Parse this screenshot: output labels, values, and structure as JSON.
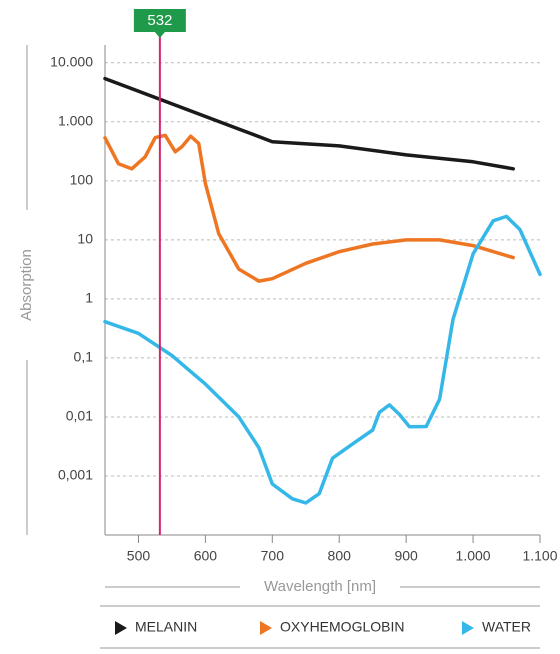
{
  "chart_data": {
    "type": "line",
    "y_label": "Absorption",
    "x_label": "Wavelength [nm]",
    "log_y": true,
    "grid": true,
    "xlim": [
      450,
      1100
    ],
    "xticks": [
      500,
      600,
      700,
      800,
      900,
      {
        "value": 1000,
        "label": "1.000"
      },
      {
        "value": 1100,
        "label": "1.100"
      }
    ],
    "ylim": [
      0.0001,
      20000
    ],
    "yticks": [
      {
        "value": 10000,
        "label": "10.000"
      },
      {
        "value": 1000,
        "label": "1.000"
      },
      100,
      10,
      1,
      {
        "value": 0.1,
        "label": "0,1"
      },
      {
        "value": 0.01,
        "label": "0,01"
      },
      {
        "value": 0.001,
        "label": "0,001"
      }
    ],
    "marker": {
      "value": 532,
      "color": "#d6246e",
      "label_color": "#1f9a4a"
    },
    "series": [
      {
        "name": "MELANIN",
        "color": "#1a1a1a",
        "x": [
          450,
          700,
          800,
          900,
          1000,
          1060
        ],
        "values": [
          5400,
          460,
          390,
          275,
          210,
          160
        ]
      },
      {
        "name": "OXYHEMOGLOBIN",
        "color": "#ee7623",
        "x": [
          450,
          470,
          490,
          510,
          525,
          540,
          555,
          565,
          578,
          590,
          600,
          620,
          650,
          680,
          700,
          750,
          800,
          850,
          900,
          950,
          1000,
          1060
        ],
        "values": [
          535,
          195,
          160,
          255,
          540,
          590,
          310,
          380,
          570,
          430,
          90,
          12.6,
          3.2,
          2,
          2.2,
          4,
          6.3,
          8.5,
          10,
          10,
          8,
          5
        ]
      },
      {
        "name": "WATER",
        "color": "#35b8e8",
        "x": [
          450,
          500,
          550,
          600,
          650,
          680,
          700,
          730,
          750,
          770,
          790,
          820,
          850,
          860,
          875,
          890,
          905,
          930,
          950,
          970,
          1000,
          1030,
          1050,
          1070,
          1100
        ],
        "values": [
          0.41,
          0.26,
          0.11,
          0.036,
          0.01,
          0.003,
          0.00073,
          0.00041,
          0.00035,
          0.0005,
          0.002,
          0.0035,
          0.006,
          0.012,
          0.016,
          0.011,
          0.0068,
          0.0069,
          0.02,
          0.45,
          5.8,
          21,
          25,
          15,
          2.6
        ]
      }
    ]
  }
}
